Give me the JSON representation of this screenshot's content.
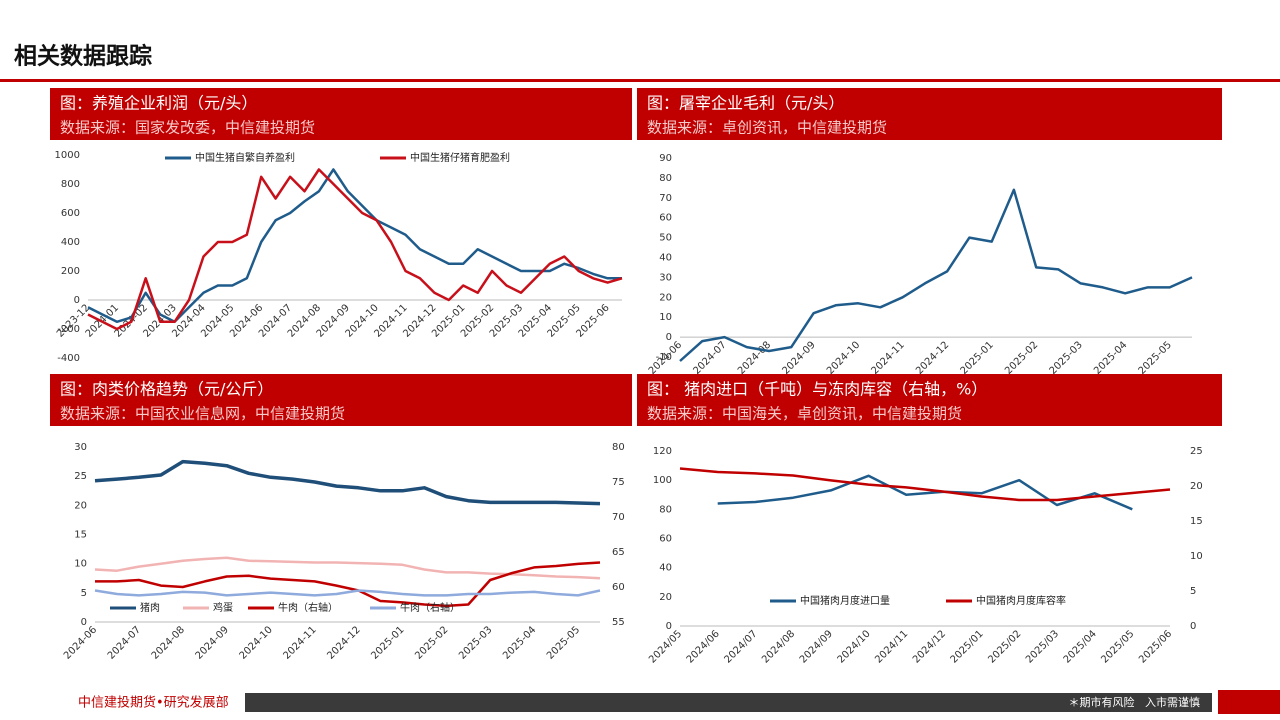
{
  "header": {
    "title": "相关数据跟踪"
  },
  "footer": {
    "left": "中信建投期货•研究发展部",
    "right": "＊期市有风险   入市需谨慎"
  },
  "chart_data": [
    {
      "type": "line",
      "title": "图：养殖企业利润（元/头）",
      "subtitle": "数据来源：国家发改委，中信建投期货",
      "categories": [
        "2023-12",
        null,
        "2024-01",
        null,
        "2024-02",
        null,
        "2024-03",
        null,
        "2024-04",
        null,
        "2024-05",
        null,
        "2024-06",
        null,
        "2024-07",
        null,
        "2024-08",
        null,
        "2024-09",
        null,
        "2024-10",
        null,
        "2024-11",
        null,
        "2024-12",
        null,
        "2025-01",
        null,
        "2025-02",
        null,
        "2025-03",
        null,
        "2025-04",
        null,
        "2025-05",
        null,
        "2025-06",
        null
      ],
      "series": [
        {
          "name": "中国生猪自繁自养盈利",
          "color": "#1f5c8b",
          "values": [
            -50,
            -100,
            -150,
            -120,
            50,
            -100,
            -150,
            -50,
            50,
            100,
            100,
            150,
            400,
            550,
            600,
            680,
            750,
            900,
            750,
            650,
            550,
            500,
            450,
            350,
            300,
            250,
            250,
            350,
            300,
            250,
            200,
            200,
            200,
            250,
            220,
            180,
            150,
            150
          ]
        },
        {
          "name": "中国生猪仔猪育肥盈利",
          "color": "#c8101a",
          "values": [
            -100,
            -150,
            -200,
            -150,
            150,
            -150,
            -150,
            0,
            300,
            400,
            400,
            450,
            850,
            700,
            850,
            750,
            900,
            800,
            700,
            600,
            550,
            400,
            200,
            150,
            50,
            0,
            100,
            50,
            200,
            100,
            50,
            150,
            250,
            300,
            200,
            150,
            120,
            150
          ]
        }
      ],
      "ylim": [
        -400,
        1000
      ],
      "yticks": [
        -400,
        -200,
        0,
        200,
        400,
        600,
        800,
        1000
      ],
      "legend": "top"
    },
    {
      "type": "line",
      "title": "图：屠宰企业毛利（元/头）",
      "subtitle": "数据来源：卓创资讯，中信建投期货",
      "categories": [
        "2024-06",
        null,
        "2024-07",
        null,
        "2024-08",
        null,
        "2024-09",
        null,
        "2024-10",
        null,
        "2024-11",
        null,
        "2024-12",
        null,
        "2025-01",
        null,
        "2025-02",
        null,
        "2025-03",
        null,
        "2025-04",
        null,
        "2025-05",
        null
      ],
      "series": [
        {
          "name": null,
          "color": "#1f5c8b",
          "values": [
            -12,
            -2,
            0,
            -5,
            -7,
            -5,
            12,
            16,
            17,
            15,
            20,
            27,
            33,
            50,
            48,
            74,
            35,
            34,
            27,
            25,
            22,
            25,
            25,
            30
          ]
        }
      ],
      "ylim": [
        -10,
        90
      ],
      "yticks": [
        -10,
        0,
        10,
        20,
        30,
        40,
        50,
        60,
        70,
        80,
        90
      ]
    },
    {
      "type": "line",
      "title": "图：肉类价格趋势（元/公斤）",
      "subtitle": "数据来源：中国农业信息网，中信建投期货",
      "categories": [
        "2024-06",
        null,
        "2024-07",
        null,
        "2024-08",
        null,
        "2024-09",
        null,
        "2024-10",
        null,
        "2024-11",
        null,
        "2024-12",
        null,
        "2025-01",
        null,
        "2025-02",
        null,
        "2025-03",
        null,
        "2025-04",
        null,
        "2025-05",
        null
      ],
      "series": [
        {
          "name": "猪肉",
          "color": "#1f4e79",
          "values": [
            24.2,
            24.5,
            24.8,
            25.2,
            27.5,
            27.2,
            26.8,
            25.5,
            24.8,
            24.5,
            24,
            23.3,
            23,
            22.5,
            22.5,
            23,
            21.5,
            20.8,
            20.5,
            20.5,
            20.5,
            20.5,
            20.4,
            20.3
          ]
        },
        {
          "name": "鸡蛋",
          "color": "#f2b3b3",
          "values": [
            9.0,
            8.8,
            9.5,
            10.0,
            10.5,
            10.8,
            11.0,
            10.5,
            10.4,
            10.3,
            10.2,
            10.2,
            10.1,
            10.0,
            9.8,
            9.0,
            8.5,
            8.5,
            8.3,
            8.2,
            8.0,
            7.8,
            7.7,
            7.5
          ]
        },
        {
          "name": "牛肉（右轴）",
          "color": "#c00000",
          "axis": "y2",
          "values": [
            60.8,
            60.8,
            61.0,
            60.2,
            60.0,
            60.8,
            61.5,
            61.6,
            61.2,
            61.0,
            60.8,
            60.2,
            59.5,
            58.0,
            57.8,
            57.5,
            57.3,
            57.5,
            61.0,
            62.0,
            62.8,
            63.0,
            63.3,
            63.5
          ]
        },
        {
          "name": "牛肉（右轴）",
          "color": "#8faadc",
          "axis": "y2",
          "values": [
            59.5,
            59.0,
            58.8,
            59.0,
            59.3,
            59.2,
            58.8,
            59.0,
            59.2,
            59.0,
            58.8,
            59.0,
            59.5,
            59.3,
            59.0,
            58.8,
            58.8,
            59.0,
            59.0,
            59.2,
            59.3,
            59.0,
            58.8,
            59.5
          ]
        }
      ],
      "ylim": [
        0,
        30
      ],
      "yticks": [
        0,
        5,
        10,
        15,
        20,
        25,
        30
      ],
      "y2lim": [
        55,
        80
      ],
      "y2ticks": [
        55,
        60,
        65,
        70,
        75,
        80
      ],
      "legend": "bottom"
    },
    {
      "type": "line",
      "title": "图： 猪肉进口（千吨）与冻肉库容（右轴，%）",
      "subtitle": "数据来源：中国海关，卓创资讯，中信建投期货",
      "categories": [
        "2024/05",
        "2024/06",
        "2024/07",
        "2024/08",
        "2024/09",
        "2024/10",
        "2024/11",
        "2024/12",
        "2025/01",
        "2025/02",
        "2025/03",
        "2025/04",
        "2025/05",
        "2025/06"
      ],
      "series": [
        {
          "name": "中国猪肉月度进口量",
          "color": "#1f5c8b",
          "values": [
            null,
            84,
            85,
            88,
            93,
            103,
            90,
            92,
            91,
            100,
            83,
            91,
            80,
            null
          ]
        },
        {
          "name": "中国猪肉月度库容率",
          "color": "#c00000",
          "axis": "y2",
          "values": [
            22.5,
            22,
            21.8,
            21.5,
            20.8,
            20.2,
            19.8,
            19.2,
            18.5,
            18,
            18,
            18.5,
            19,
            19.5
          ]
        }
      ],
      "ylim": [
        0,
        120
      ],
      "yticks": [
        0,
        20,
        40,
        60,
        80,
        100,
        120
      ],
      "y2lim": [
        0,
        25
      ],
      "y2ticks": [
        0,
        5,
        10,
        15,
        20,
        25
      ],
      "legend": "bottom"
    }
  ]
}
